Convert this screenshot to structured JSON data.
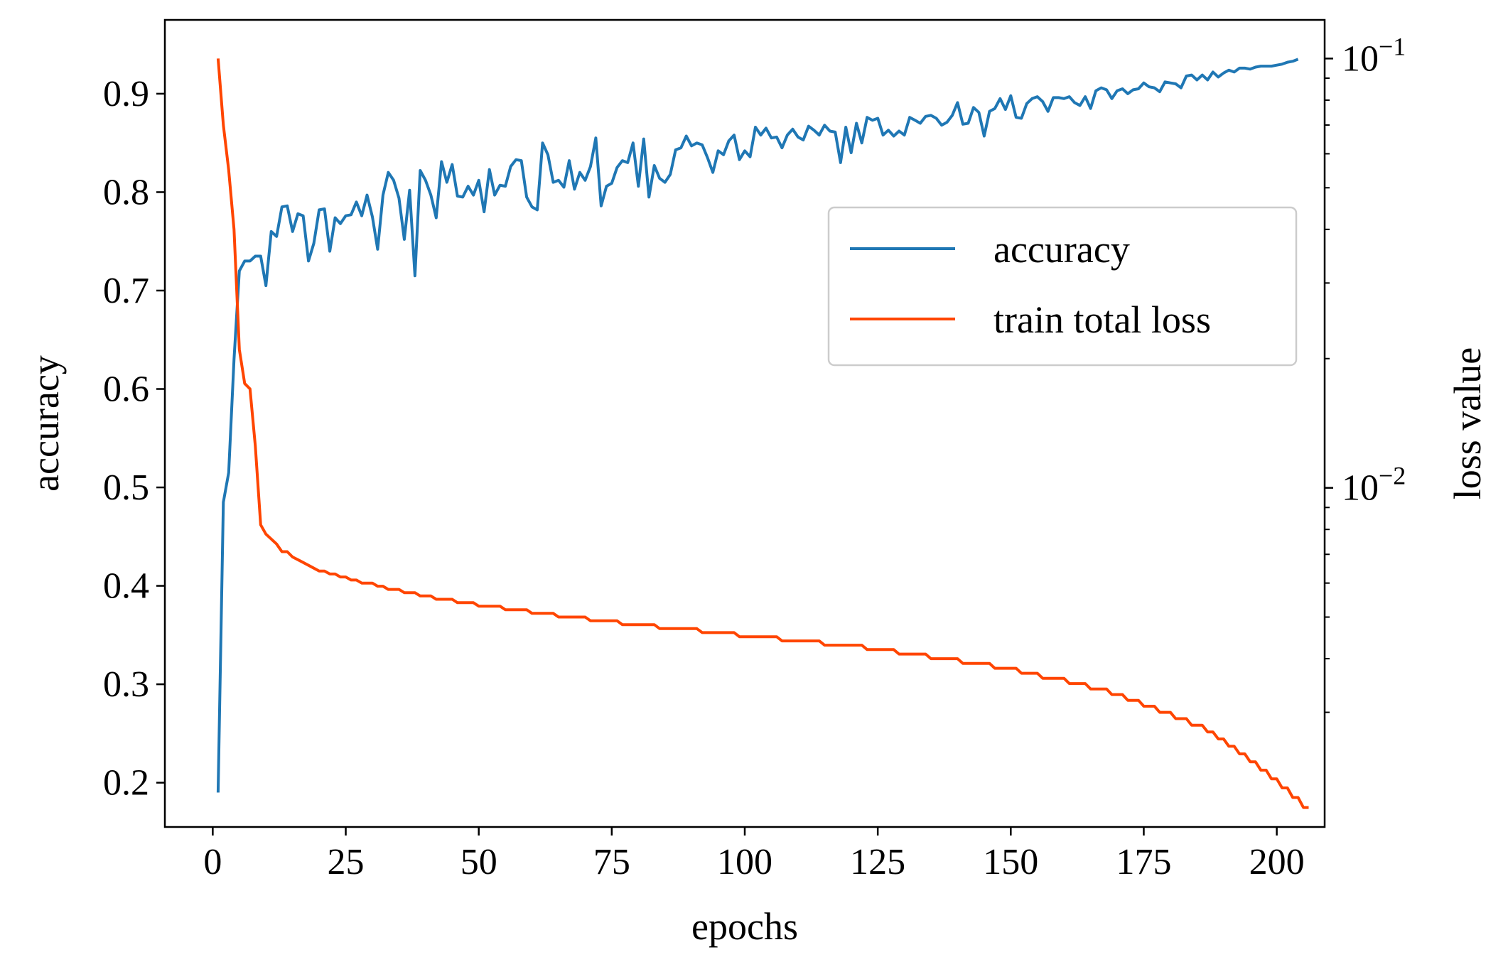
{
  "chart_data": {
    "type": "line",
    "title": "",
    "xlabel": "epochs",
    "ylabel_left": "accuracy",
    "ylabel_right": "loss value",
    "xlim": [
      -9,
      209
    ],
    "ylim_left": [
      0.155,
      0.975
    ],
    "ylim_right_log10": [
      -2.79,
      -0.91
    ],
    "x_ticks": [
      0,
      25,
      50,
      75,
      100,
      125,
      150,
      175,
      200
    ],
    "x_tick_labels": [
      "0",
      "25",
      "50",
      "75",
      "100",
      "125",
      "150",
      "175",
      "200"
    ],
    "y_left_ticks": [
      0.2,
      0.3,
      0.4,
      0.5,
      0.6,
      0.7,
      0.8,
      0.9
    ],
    "y_left_tick_labels": [
      "0.2",
      "0.3",
      "0.4",
      "0.5",
      "0.6",
      "0.7",
      "0.8",
      "0.9"
    ],
    "y_right_major_ticks": [
      {
        "value": 0.1,
        "base": "10",
        "exponent": "−1"
      },
      {
        "value": 0.01,
        "base": "10",
        "exponent": "−2"
      }
    ],
    "y_right_minor_ticks": [
      0.003,
      0.004,
      0.005,
      0.006,
      0.007,
      0.008,
      0.009,
      0.02,
      0.03,
      0.04,
      0.05,
      0.06,
      0.07,
      0.08,
      0.09
    ],
    "legend": {
      "position": "center-right",
      "entries": [
        "accuracy",
        "train total loss"
      ]
    },
    "series": [
      {
        "name": "accuracy",
        "axis": "left",
        "color": "#1f77b4",
        "x_start": 1,
        "values": [
          0.19,
          0.485,
          0.515,
          0.63,
          0.72,
          0.73,
          0.73,
          0.735,
          0.735,
          0.705,
          0.76,
          0.755,
          0.785,
          0.786,
          0.76,
          0.778,
          0.776,
          0.73,
          0.748,
          0.782,
          0.783,
          0.74,
          0.774,
          0.768,
          0.776,
          0.777,
          0.79,
          0.776,
          0.797,
          0.775,
          0.742,
          0.797,
          0.82,
          0.812,
          0.794,
          0.752,
          0.802,
          0.715,
          0.822,
          0.812,
          0.797,
          0.774,
          0.831,
          0.81,
          0.828,
          0.796,
          0.795,
          0.806,
          0.797,
          0.812,
          0.78,
          0.823,
          0.797,
          0.807,
          0.806,
          0.826,
          0.833,
          0.832,
          0.795,
          0.785,
          0.782,
          0.85,
          0.838,
          0.81,
          0.812,
          0.805,
          0.832,
          0.803,
          0.82,
          0.812,
          0.826,
          0.855,
          0.786,
          0.806,
          0.809,
          0.825,
          0.832,
          0.83,
          0.85,
          0.806,
          0.854,
          0.795,
          0.827,
          0.814,
          0.81,
          0.818,
          0.843,
          0.845,
          0.857,
          0.847,
          0.85,
          0.848,
          0.835,
          0.82,
          0.842,
          0.838,
          0.852,
          0.858,
          0.833,
          0.842,
          0.836,
          0.866,
          0.858,
          0.865,
          0.855,
          0.856,
          0.845,
          0.858,
          0.864,
          0.856,
          0.853,
          0.867,
          0.863,
          0.858,
          0.868,
          0.862,
          0.861,
          0.83,
          0.866,
          0.84,
          0.87,
          0.85,
          0.876,
          0.873,
          0.875,
          0.858,
          0.863,
          0.857,
          0.862,
          0.858,
          0.876,
          0.873,
          0.87,
          0.877,
          0.878,
          0.875,
          0.868,
          0.871,
          0.878,
          0.891,
          0.869,
          0.87,
          0.886,
          0.881,
          0.857,
          0.882,
          0.885,
          0.895,
          0.884,
          0.898,
          0.876,
          0.875,
          0.89,
          0.895,
          0.897,
          0.892,
          0.882,
          0.896,
          0.896,
          0.895,
          0.897,
          0.891,
          0.888,
          0.897,
          0.885,
          0.903,
          0.906,
          0.904,
          0.895,
          0.903,
          0.905,
          0.9,
          0.904,
          0.905,
          0.911,
          0.907,
          0.906,
          0.902,
          0.912,
          0.911,
          0.91,
          0.906,
          0.918,
          0.919,
          0.914,
          0.919,
          0.914,
          0.922,
          0.917,
          0.921,
          0.924,
          0.922,
          0.926,
          0.926,
          0.925,
          0.927,
          0.928,
          0.928,
          0.928,
          0.929,
          0.93,
          0.932,
          0.933,
          0.935
        ]
      },
      {
        "name": "train total loss",
        "axis": "right",
        "color": "#ff4500",
        "x_start": 1,
        "values": [
          0.1,
          0.07,
          0.055,
          0.04,
          0.021,
          0.0175,
          0.017,
          0.0125,
          0.0082,
          0.0078,
          0.0076,
          0.0074,
          0.0071,
          0.0071,
          0.0069,
          0.0068,
          0.0067,
          0.0066,
          0.0065,
          0.0064,
          0.0064,
          0.0063,
          0.0063,
          0.0062,
          0.0062,
          0.0061,
          0.0061,
          0.006,
          0.006,
          0.006,
          0.0059,
          0.0059,
          0.0058,
          0.0058,
          0.0058,
          0.0057,
          0.0057,
          0.0057,
          0.0056,
          0.0056,
          0.0056,
          0.0055,
          0.0055,
          0.0055,
          0.0055,
          0.0054,
          0.0054,
          0.0054,
          0.0054,
          0.0053,
          0.0053,
          0.0053,
          0.0053,
          0.0053,
          0.0052,
          0.0052,
          0.0052,
          0.0052,
          0.0052,
          0.0051,
          0.0051,
          0.0051,
          0.0051,
          0.0051,
          0.005,
          0.005,
          0.005,
          0.005,
          0.005,
          0.005,
          0.0049,
          0.0049,
          0.0049,
          0.0049,
          0.0049,
          0.0049,
          0.0048,
          0.0048,
          0.0048,
          0.0048,
          0.0048,
          0.0048,
          0.0048,
          0.0047,
          0.0047,
          0.0047,
          0.0047,
          0.0047,
          0.0047,
          0.0047,
          0.0047,
          0.0046,
          0.0046,
          0.0046,
          0.0046,
          0.0046,
          0.0046,
          0.0046,
          0.0045,
          0.0045,
          0.0045,
          0.0045,
          0.0045,
          0.0045,
          0.0045,
          0.0045,
          0.0044,
          0.0044,
          0.0044,
          0.0044,
          0.0044,
          0.0044,
          0.0044,
          0.0044,
          0.0043,
          0.0043,
          0.0043,
          0.0043,
          0.0043,
          0.0043,
          0.0043,
          0.0043,
          0.0042,
          0.0042,
          0.0042,
          0.0042,
          0.0042,
          0.0042,
          0.0041,
          0.0041,
          0.0041,
          0.0041,
          0.0041,
          0.0041,
          0.004,
          0.004,
          0.004,
          0.004,
          0.004,
          0.004,
          0.0039,
          0.0039,
          0.0039,
          0.0039,
          0.0039,
          0.0039,
          0.0038,
          0.0038,
          0.0038,
          0.0038,
          0.0038,
          0.0037,
          0.0037,
          0.0037,
          0.0037,
          0.0036,
          0.0036,
          0.0036,
          0.0036,
          0.0036,
          0.0035,
          0.0035,
          0.0035,
          0.0035,
          0.0034,
          0.0034,
          0.0034,
          0.0034,
          0.0033,
          0.0033,
          0.0033,
          0.0032,
          0.0032,
          0.0032,
          0.0031,
          0.0031,
          0.0031,
          0.003,
          0.003,
          0.003,
          0.0029,
          0.0029,
          0.0029,
          0.0028,
          0.0028,
          0.0028,
          0.0027,
          0.0027,
          0.0026,
          0.0026,
          0.0025,
          0.0025,
          0.0024,
          0.0024,
          0.0023,
          0.0023,
          0.0022,
          0.0022,
          0.0021,
          0.0021,
          0.002,
          0.002,
          0.0019,
          0.0019,
          0.0018,
          0.0018
        ]
      }
    ]
  }
}
